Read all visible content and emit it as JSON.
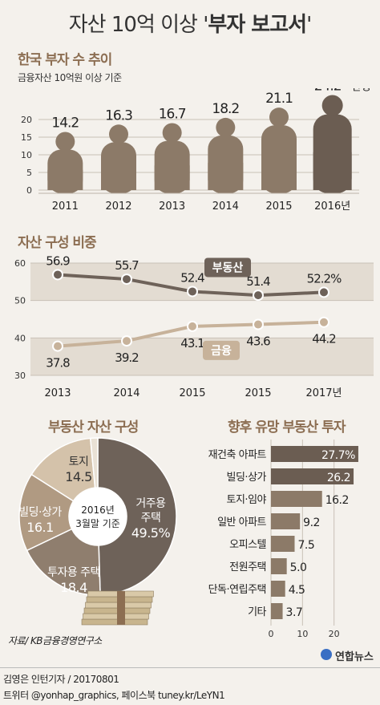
{
  "header": {
    "title_plain": "자산 10억 이상 '",
    "title_bold": "부자 보고서",
    "title_end": "'"
  },
  "chart_data": [
    {
      "type": "bar",
      "title": "한국 부자 수 추이",
      "subtitle": "금융자산 10억원 이상 기준",
      "categories": [
        "2011",
        "2012",
        "2013",
        "2014",
        "2015",
        "2016년"
      ],
      "values": [
        14.2,
        16.3,
        16.7,
        18.2,
        21.1,
        24.2
      ],
      "value_labels": [
        "14.2",
        "16.3",
        "16.7",
        "18.2",
        "21.1",
        "24.2"
      ],
      "unit_label": "만명",
      "yticks": [
        "0",
        "5",
        "10",
        "15",
        "20"
      ],
      "ylim": [
        0,
        25
      ],
      "grid": true,
      "colors": [
        "#8c7a68",
        "#8c7a68",
        "#8c7a68",
        "#8c7a68",
        "#8c7a68",
        "#6b5d52"
      ]
    },
    {
      "type": "line",
      "title": "자산 구성 비중",
      "categories": [
        "2013",
        "2014",
        "2015",
        "2015",
        "2017년"
      ],
      "series": [
        {
          "name": "부동산",
          "values": [
            56.9,
            55.7,
            52.4,
            51.4,
            52.2
          ],
          "labels": [
            "56.9",
            "55.7",
            "52.4",
            "51.4",
            "52.2%"
          ],
          "color": "#6e6259"
        },
        {
          "name": "금융",
          "values": [
            37.8,
            39.2,
            43.1,
            43.6,
            44.2
          ],
          "labels": [
            "37.8",
            "39.2",
            "43.1",
            "43.6",
            "44.2"
          ],
          "color": "#c7b29a"
        }
      ],
      "yticks": [
        "30",
        "40",
        "50",
        "60"
      ],
      "ylim": [
        30,
        60
      ],
      "grid": true
    },
    {
      "type": "pie",
      "title": "부동산 자산 구성",
      "center_label": [
        "2016년",
        "3월말 기준"
      ],
      "slices": [
        {
          "label": "거주용\n주택",
          "value": 49.5,
          "value_label": "49.5%",
          "color": "#6e6259"
        },
        {
          "label": "투자용 주택",
          "value": 18.4,
          "value_label": "18.4",
          "color": "#8f7e6e"
        },
        {
          "label": "빌딩·상가",
          "value": 16.1,
          "value_label": "16.1",
          "color": "#b09a82"
        },
        {
          "label": "토지",
          "value": 14.5,
          "value_label": "14.5",
          "color": "#d4c2aa"
        },
        {
          "label": "",
          "value": 1.5,
          "value_label": "",
          "color": "#e9e1d5"
        }
      ]
    },
    {
      "type": "bar",
      "orientation": "horizontal",
      "title": "향후 유망 부동산 투자",
      "categories": [
        "재건축 아파트",
        "빌딩·상가",
        "토지·임야",
        "일반 아파트",
        "오피스텔",
        "전원주택",
        "단독·연립주택",
        "기타"
      ],
      "values": [
        27.7,
        26.2,
        16.2,
        9.2,
        7.5,
        5.0,
        4.5,
        3.7
      ],
      "value_labels": [
        "27.7%",
        "26.2",
        "16.2",
        "9.2",
        "7.5",
        "5.0",
        "4.5",
        "3.7"
      ],
      "xticks": [
        "0",
        "10",
        "20"
      ],
      "xlim": [
        0,
        30
      ],
      "colors": {
        "bar": "#6b5d52",
        "bar_light": "#8c7a68"
      }
    }
  ],
  "footer": {
    "source": "자료/ KB금융경영연구소",
    "credit": "김영은 인턴기자 / 20170801",
    "sns": "트위터 @yonhap_graphics, 페이스북 tuney.kr/LeYN1",
    "logo": "연합뉴스"
  }
}
